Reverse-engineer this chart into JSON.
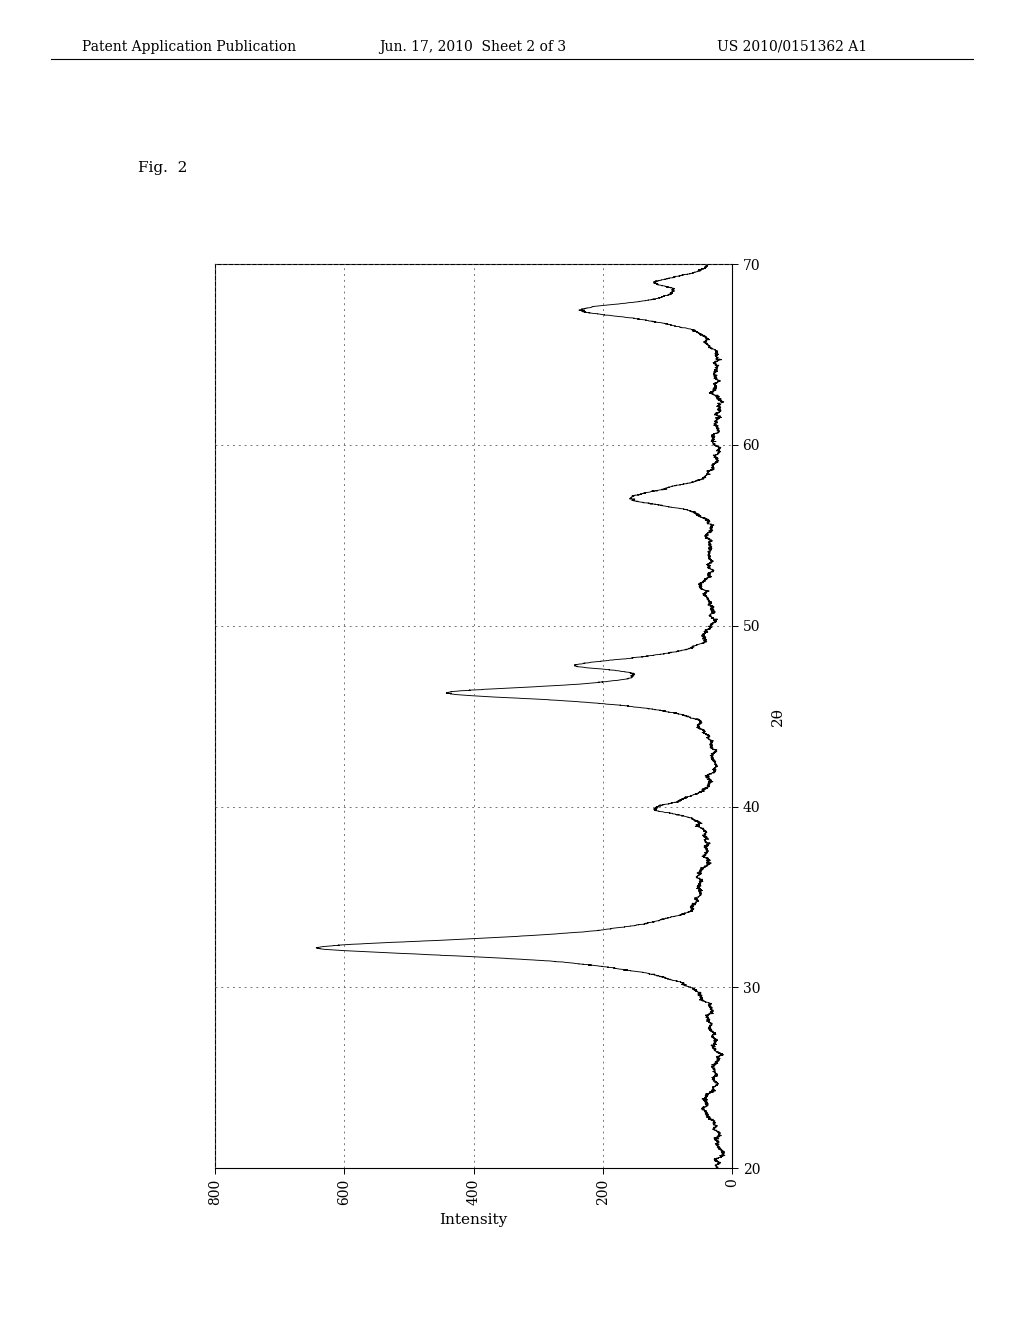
{
  "header_left": "Patent Application Publication",
  "header_center": "Jun. 17, 2010  Sheet 2 of 3",
  "header_right": "US 2010/0151362 A1",
  "fig_label": "Fig.  2",
  "xlabel": "2θ",
  "ylabel": "Intensity",
  "two_theta_range": [
    20,
    70
  ],
  "intensity_range": [
    0,
    800
  ],
  "two_theta_ticks": [
    20,
    30,
    40,
    50,
    60,
    70
  ],
  "intensity_ticks": [
    0,
    200,
    400,
    600,
    800
  ],
  "background_color": "#ffffff",
  "line_color": "#000000"
}
